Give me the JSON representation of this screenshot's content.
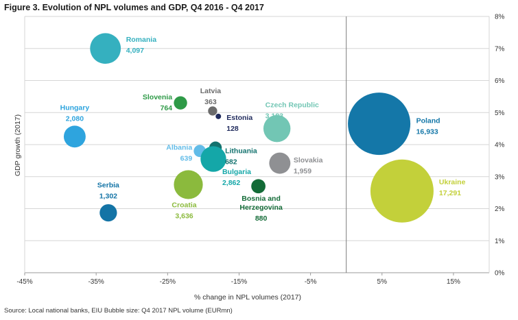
{
  "chart_data": {
    "type": "scatter",
    "title": "Figure 3. Evolution of NPL volumes and GDP, Q4 2016 - Q4 2017",
    "xlabel": "% change in NPL volumes (2017)",
    "ylabel": "GDP growth (2017)",
    "xlim": [
      -45,
      20
    ],
    "ylim": [
      0,
      8
    ],
    "x_ticks": [
      "-45%",
      "-35%",
      "-25%",
      "-15%",
      "-5%",
      "5%",
      "15%"
    ],
    "y_ticks": [
      "0%",
      "1%",
      "2%",
      "3%",
      "4%",
      "5%",
      "6%",
      "7%",
      "8%"
    ],
    "grid": true,
    "bubble_size": "Q4 2017 NPL volume (EURmn)",
    "points": [
      {
        "name": "Romania",
        "value": "4,097",
        "x": -33.7,
        "y": 7.0,
        "size": 4097,
        "color": "#35b0bf"
      },
      {
        "name": "Slovenia",
        "value": "764",
        "x": -23.2,
        "y": 5.3,
        "size": 764,
        "color": "#2e9a47"
      },
      {
        "name": "Latvia",
        "value": "363",
        "x": -18.7,
        "y": 5.05,
        "size": 363,
        "color": "#6b6b6b"
      },
      {
        "name": "Estonia",
        "value": "128",
        "x": -17.9,
        "y": 4.88,
        "size": 128,
        "color": "#1f2a5c"
      },
      {
        "name": "Czech Republic",
        "value": "3,183",
        "x": -9.7,
        "y": 4.5,
        "size": 3183,
        "color": "#72c6b4"
      },
      {
        "name": "Hungary",
        "value": "2,080",
        "x": -38.0,
        "y": 4.25,
        "size": 2080,
        "color": "#2ea4de"
      },
      {
        "name": "Albania",
        "value": "639",
        "x": -20.5,
        "y": 3.8,
        "size": 639,
        "color": "#62bce8"
      },
      {
        "name": "Lithuania",
        "value": "682",
        "x": -18.3,
        "y": 3.9,
        "size": 682,
        "color": "#13726e"
      },
      {
        "name": "Bulgaria",
        "value": "2,862",
        "x": -18.6,
        "y": 3.55,
        "size": 2862,
        "color": "#14a7a8"
      },
      {
        "name": "Slovakia",
        "value": "1,959",
        "x": -9.3,
        "y": 3.42,
        "size": 1959,
        "color": "#8f9093"
      },
      {
        "name": "Croatia",
        "value": "3,636",
        "x": -22.1,
        "y": 2.75,
        "size": 3636,
        "color": "#8bba3d"
      },
      {
        "name": "Bosnia  and Herzegovina",
        "value": "880",
        "x": -12.3,
        "y": 2.7,
        "size": 880,
        "color": "#136b37"
      },
      {
        "name": "Serbia",
        "value": "1,302",
        "x": -33.3,
        "y": 1.87,
        "size": 1302,
        "color": "#1474a6"
      },
      {
        "name": "Poland",
        "value": "16,933",
        "x": 4.6,
        "y": 4.65,
        "size": 16933,
        "color": "#1477a8"
      },
      {
        "name": "Ukraine",
        "value": "17,291",
        "x": 7.8,
        "y": 2.55,
        "size": 17291,
        "color": "#c3d03a"
      }
    ]
  },
  "source": "Source: Local national banks, EIU     Bubble size: Q4 2017 NPL volume (EURmn)"
}
